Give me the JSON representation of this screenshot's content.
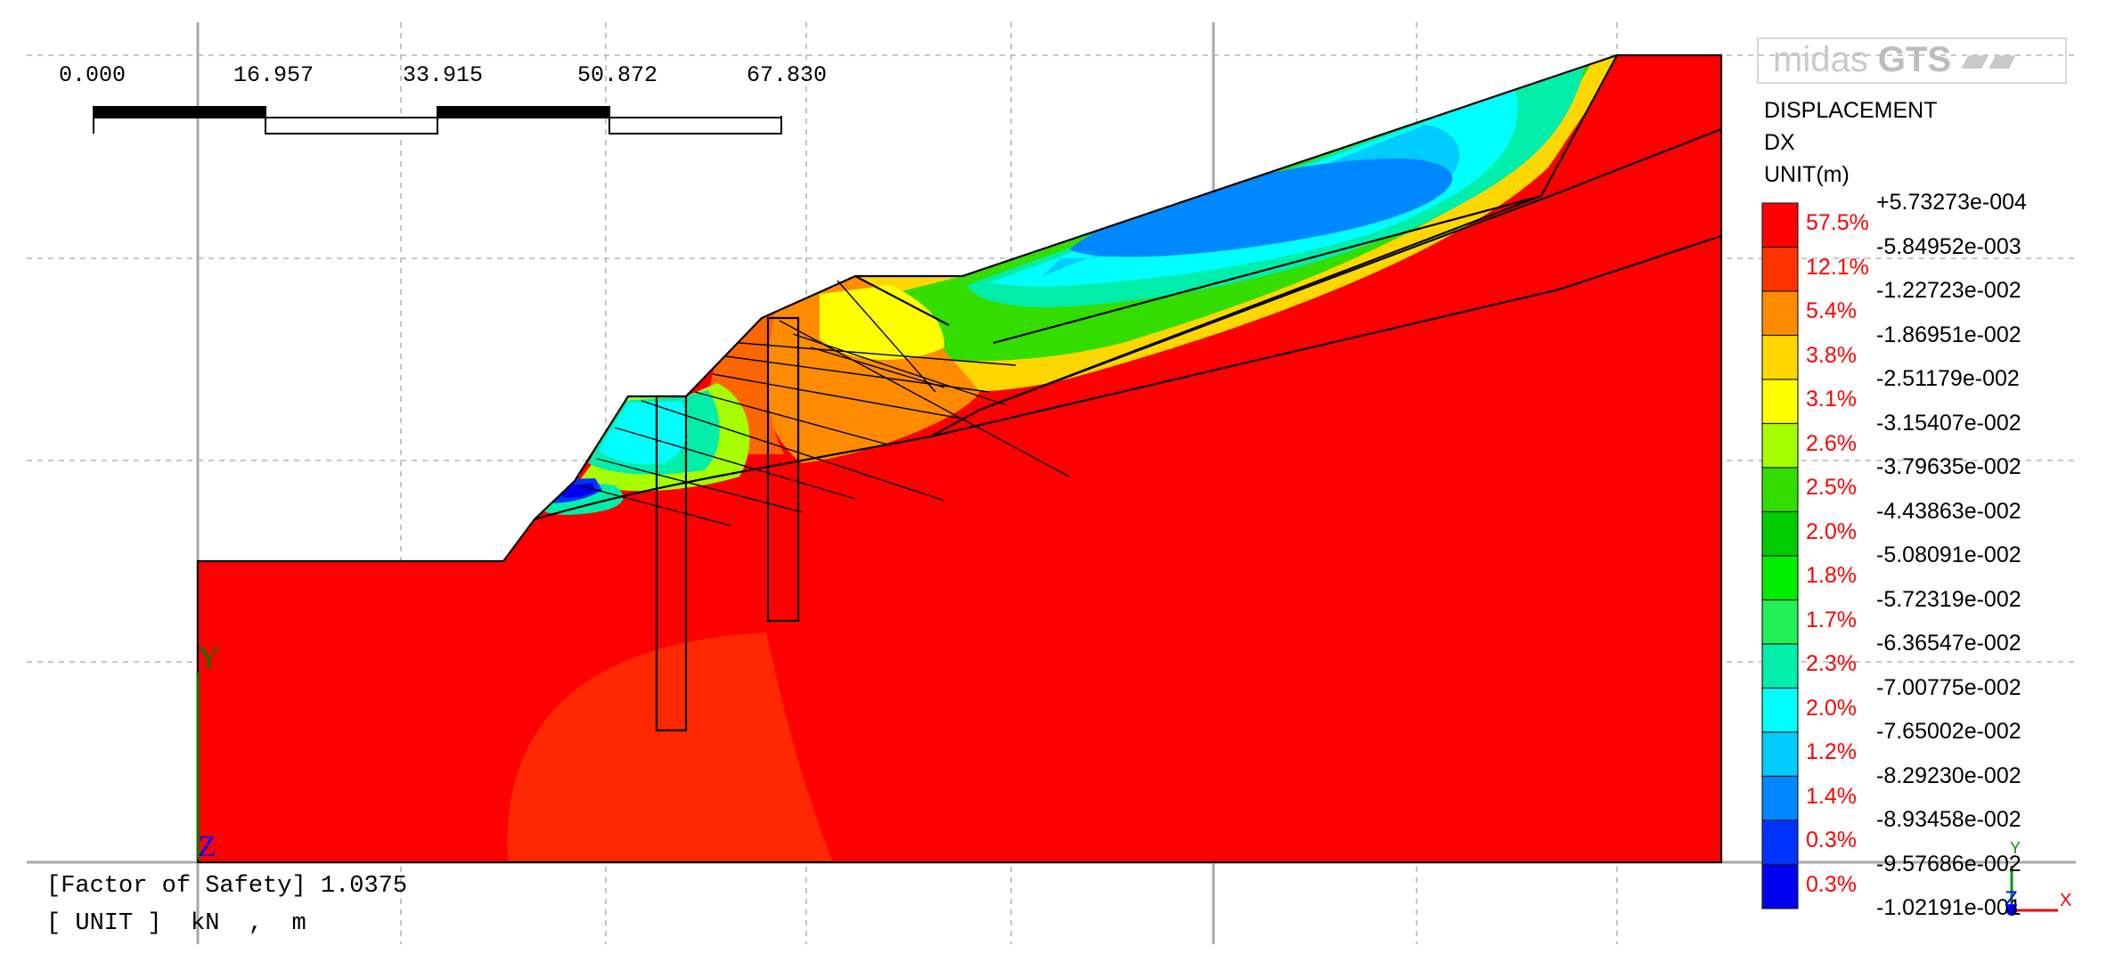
{
  "scale_bar": {
    "labels": [
      "0.000",
      "16.957",
      "33.915",
      "50.872",
      "67.830"
    ]
  },
  "logo": {
    "brand": "midas",
    "product": "GTS"
  },
  "legend": {
    "title": "DISPLACEMENT",
    "component": "DX",
    "unit": "UNIT(m)",
    "values": [
      "+5.73273e-004",
      "-5.84952e-003",
      "-1.22723e-002",
      "-1.86951e-002",
      "-2.51179e-002",
      "-3.15407e-002",
      "-3.79635e-002",
      "-4.43863e-002",
      "-5.08091e-002",
      "-5.72319e-002",
      "-6.36547e-002",
      "-7.00775e-002",
      "-7.65002e-002",
      "-8.29230e-002",
      "-8.93458e-002",
      "-9.57686e-002",
      "-1.02191e-001"
    ],
    "percents": [
      "57.5%",
      "12.1%",
      "5.4%",
      "3.8%",
      "3.1%",
      "2.6%",
      "2.5%",
      "2.0%",
      "1.8%",
      "1.7%",
      "2.3%",
      "2.0%",
      "1.2%",
      "1.4%",
      "0.3%",
      "0.3%"
    ],
    "colors": [
      "#ff0000",
      "#ff3300",
      "#ff8c00",
      "#ffd700",
      "#ffff00",
      "#a5ff00",
      "#33dd00",
      "#00cc00",
      "#00ee00",
      "#22ee55",
      "#00eeaa",
      "#00ffff",
      "#00ccff",
      "#0088ff",
      "#0033ff",
      "#0000ee"
    ]
  },
  "axes": {
    "y_label": "Y",
    "z_label": "Z",
    "mini_x": "X",
    "mini_y": "Y",
    "mini_z": "Z"
  },
  "info": {
    "safety_factor_line": "[Factor of Safety] 1.0375",
    "unit_line": "[ UNIT ]  kN  ,  m"
  }
}
